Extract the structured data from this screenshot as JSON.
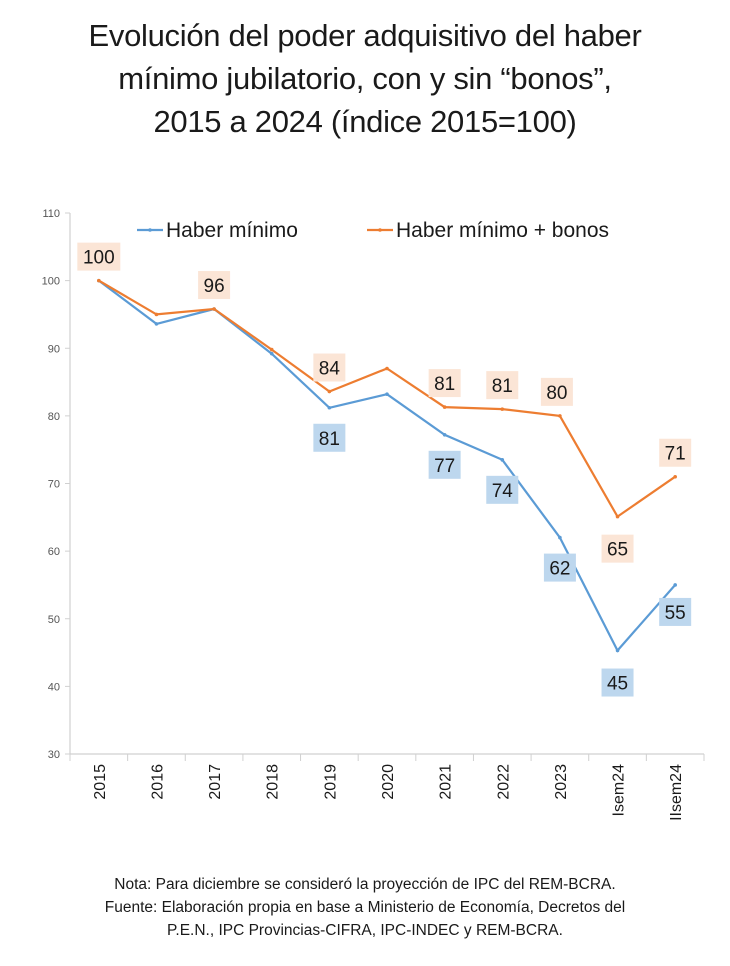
{
  "title_lines": [
    "Evolución del poder adquisitivo del haber",
    "mínimo jubilatorio, con y sin “bonos”,",
    "2015 a 2024 (índice 2015=100)"
  ],
  "notes": [
    "Nota: Para diciembre se consideró la proyección de IPC del REM-BCRA.",
    "Fuente: Elaboración propia en base a Ministerio de Economía, Decretos del",
    "P.E.N., IPC Provincias-CIFRA, IPC-INDEC y REM-BCRA."
  ],
  "chart_data": {
    "type": "line",
    "title": "Evolución del poder adquisitivo del haber mínimo jubilatorio, con y sin “bonos”, 2015 a 2024 (índice 2015=100)",
    "xlabel": "",
    "ylabel": "",
    "categories": [
      "2015",
      "2016",
      "2017",
      "2018",
      "2019",
      "2020",
      "2021",
      "2022",
      "2023",
      "Isem24",
      "IIsem24"
    ],
    "ylim": [
      30,
      110
    ],
    "yticks": [
      30,
      40,
      50,
      60,
      70,
      80,
      90,
      100,
      110
    ],
    "grid": false,
    "legend_position": "top",
    "series": [
      {
        "name": "Haber mínimo",
        "color": "#5b9bd5",
        "label_bg": "#bdd7ee",
        "values": [
          100,
          93.6,
          95.8,
          89.2,
          81.2,
          83.2,
          77.2,
          73.5,
          62.0,
          45.3,
          55.0
        ],
        "data_labels": [
          null,
          null,
          null,
          null,
          "81",
          null,
          "77",
          "74",
          "62",
          "45",
          "55"
        ]
      },
      {
        "name": "Haber mínimo + bonos",
        "color": "#ed7d31",
        "label_bg": "#fbe5d6",
        "values": [
          100,
          95.0,
          95.8,
          89.8,
          83.6,
          87.0,
          81.3,
          81.0,
          80.0,
          65.1,
          71.0
        ],
        "data_labels": [
          "100",
          null,
          "96",
          null,
          "84",
          null,
          "81",
          "81",
          "80",
          "65",
          "71"
        ]
      }
    ]
  }
}
